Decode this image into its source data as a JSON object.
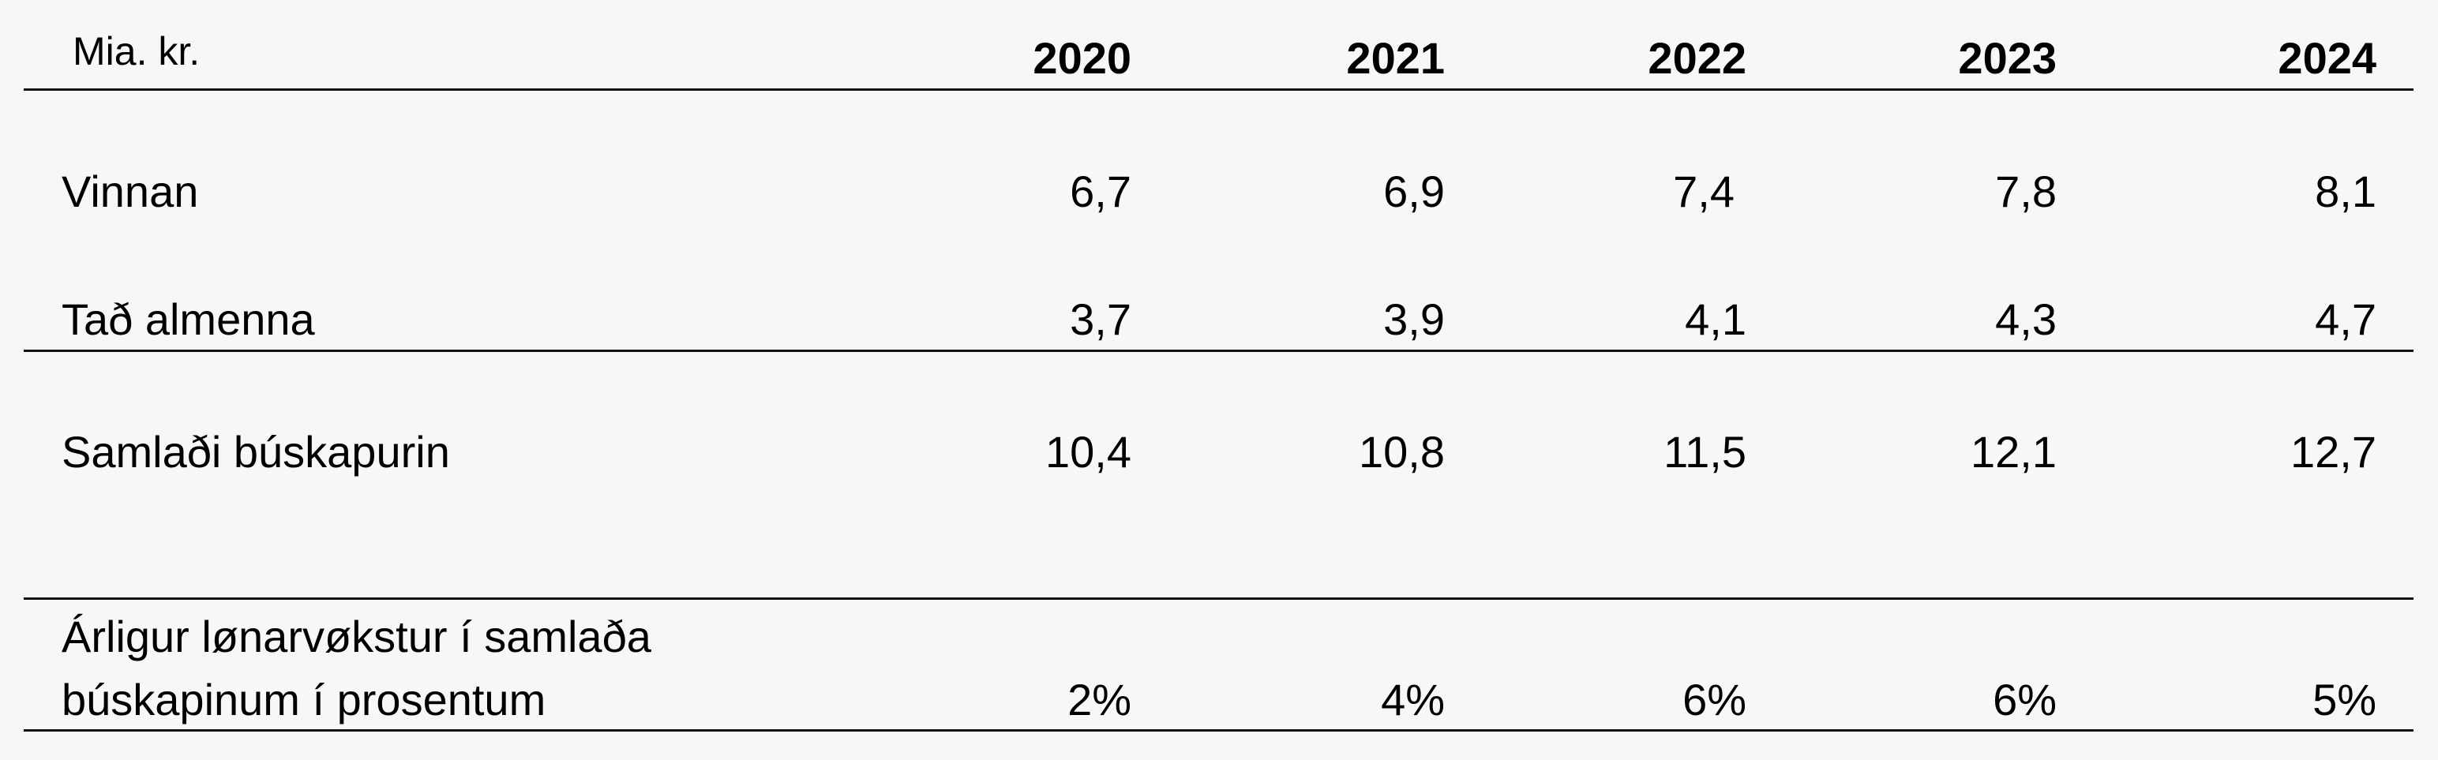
{
  "table": {
    "unit": "Mia. kr.",
    "years": [
      "2020",
      "2021",
      "2022",
      "2023",
      "2024"
    ],
    "rows": [
      {
        "label": "Vinnan",
        "values": [
          "6,7",
          "6,9",
          "7,4",
          "7,8",
          "8,1"
        ]
      },
      {
        "label": "Tað almenna",
        "values": [
          "3,7",
          "3,9",
          "4,1",
          "4,3",
          "4,7"
        ]
      },
      {
        "label": "Samlaði búskapurin",
        "values": [
          "10,4",
          "10,8",
          "11,5",
          "12,1",
          "12,7"
        ]
      },
      {
        "label_line1": "Árligur lønarvøkstur í samlaða",
        "label_line2": "búskapinum í prosentum",
        "values": [
          "2%",
          "4%",
          "6%",
          "6%",
          "5%"
        ]
      }
    ]
  }
}
